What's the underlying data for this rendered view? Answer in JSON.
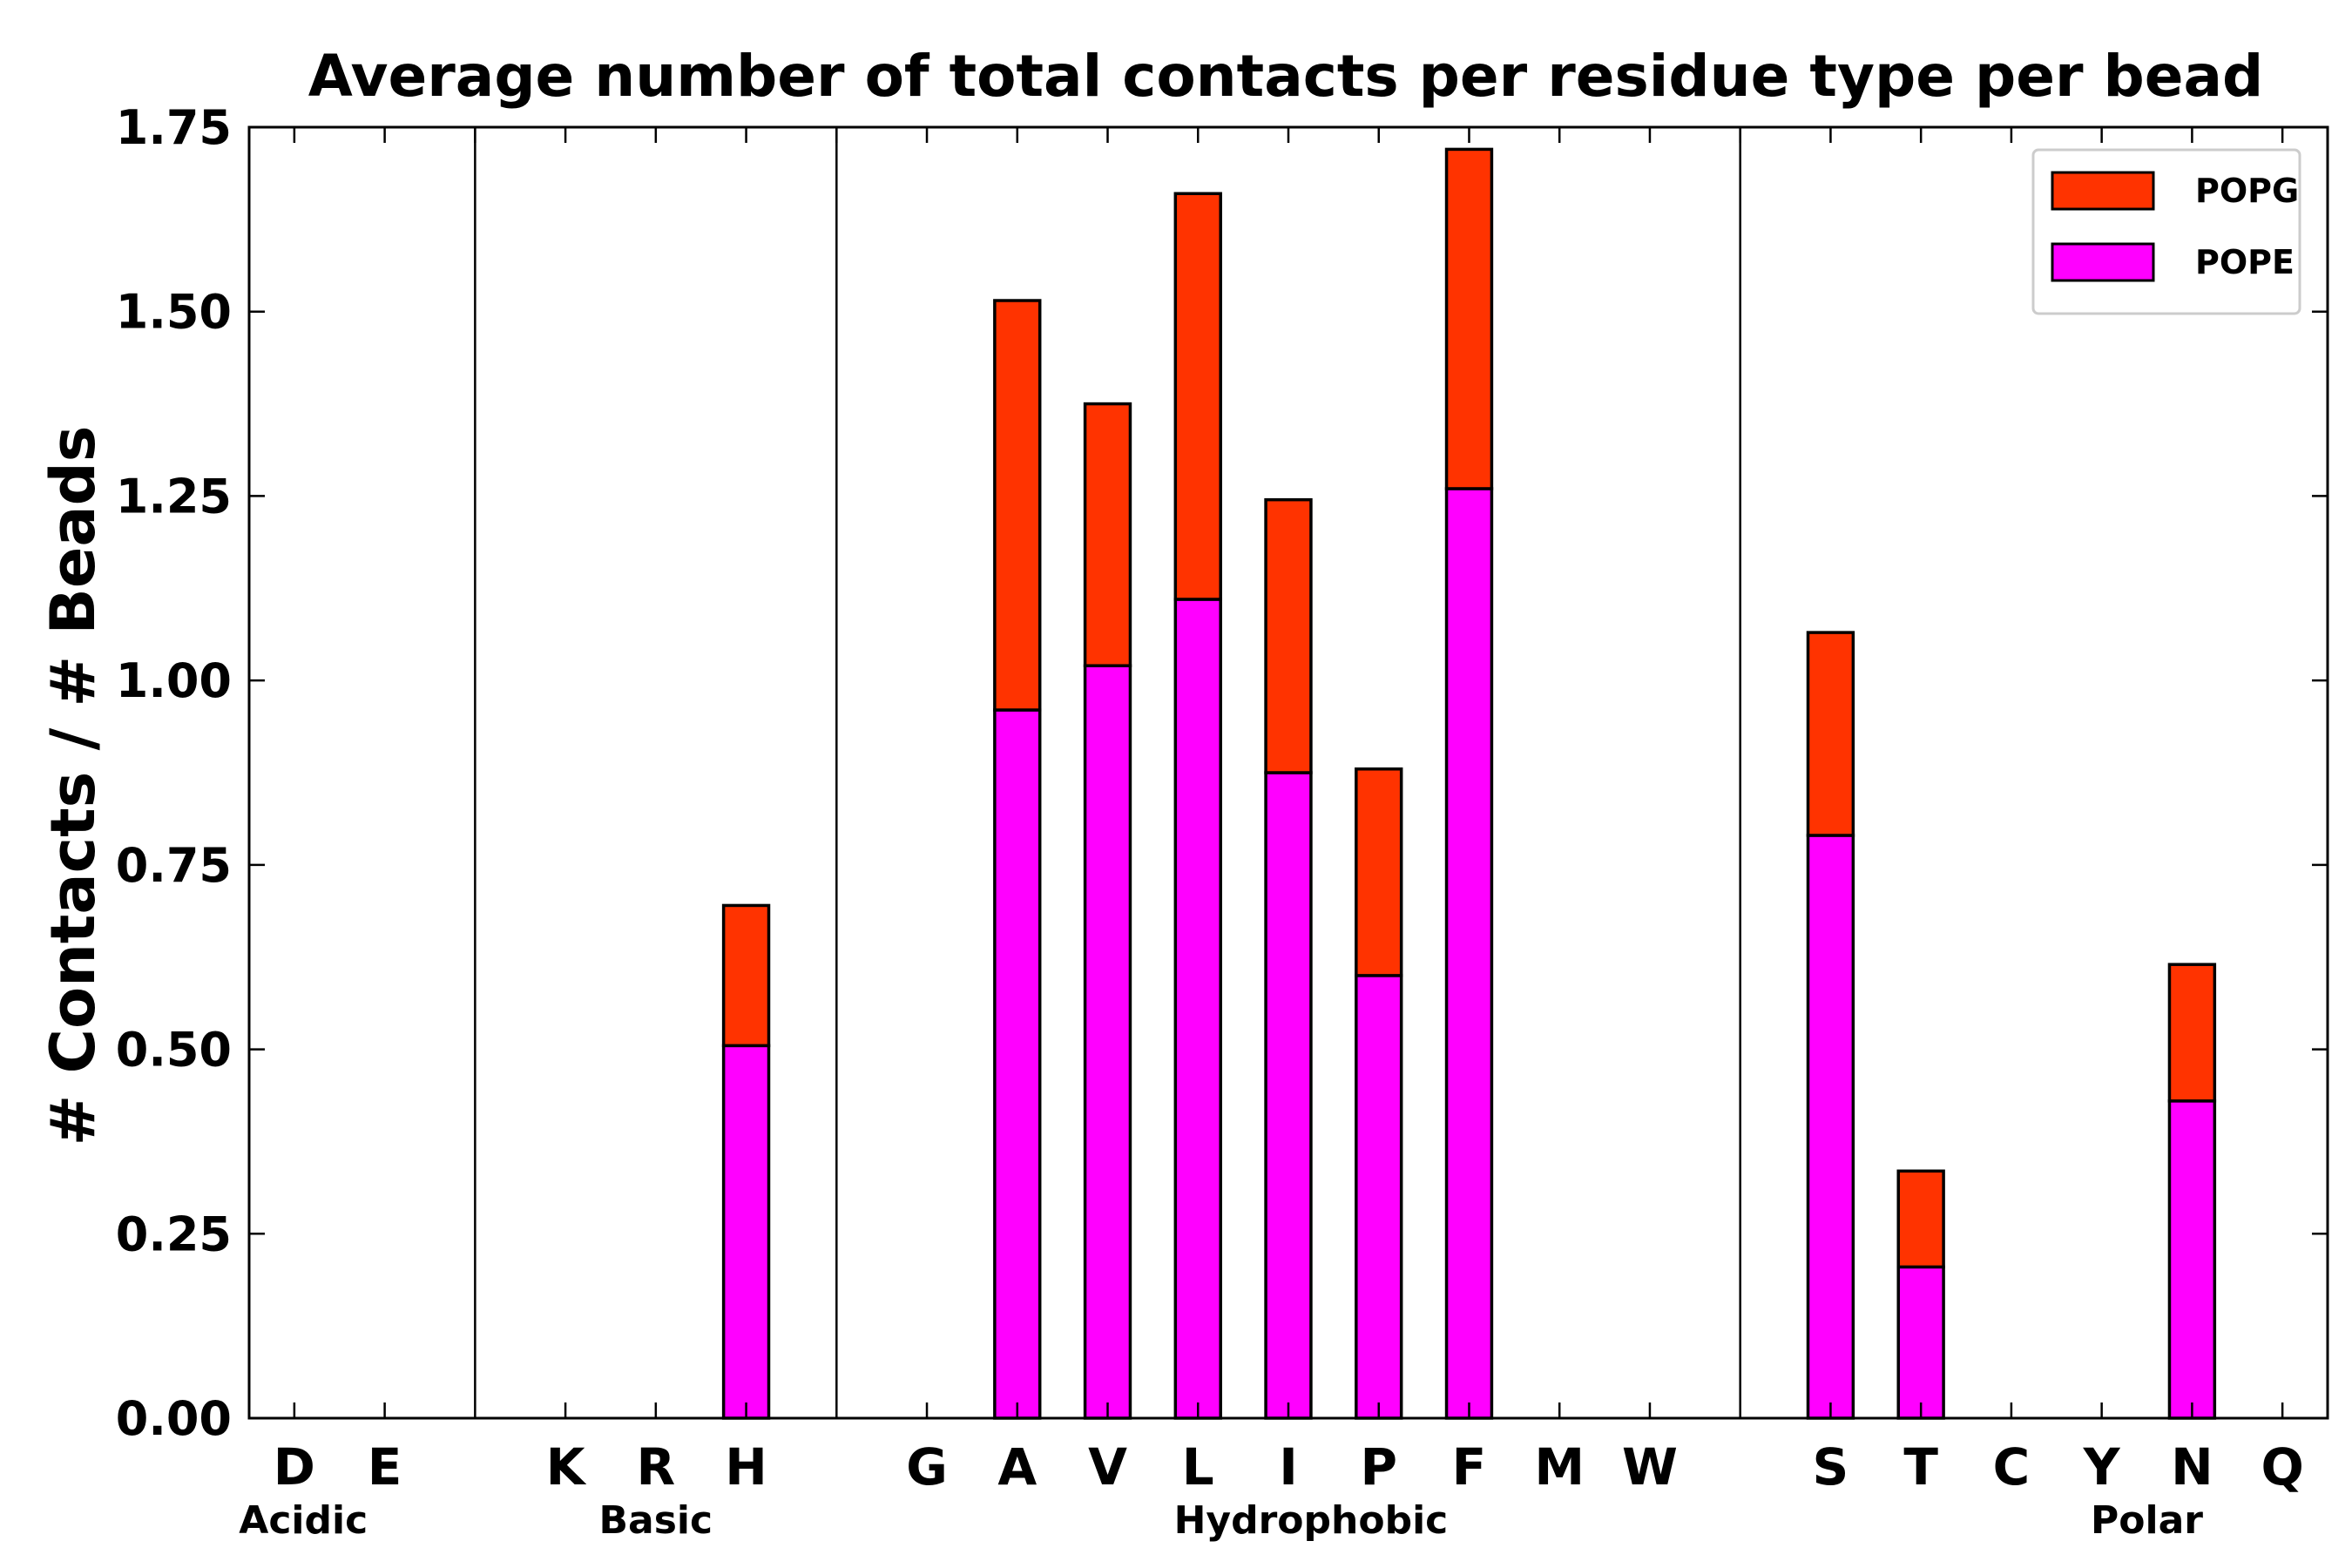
{
  "chart_data": {
    "type": "bar",
    "stacked": true,
    "title": "Average number of total contacts per residue type per bead",
    "xlabel": "",
    "ylabel": "# Contacts / # Beads",
    "ylim": [
      0,
      1.75
    ],
    "yticks": [
      "0.00",
      "0.25",
      "0.50",
      "0.75",
      "1.00",
      "1.25",
      "1.50",
      "1.75"
    ],
    "grid": false,
    "legend_position": "top-right",
    "categories": [
      "D",
      "E",
      "",
      "K",
      "R",
      "H",
      "",
      "G",
      "A",
      "V",
      "L",
      "I",
      "P",
      "F",
      "M",
      "W",
      "",
      "S",
      "T",
      "C",
      "Y",
      "N",
      "Q"
    ],
    "series": [
      {
        "name": "POPE",
        "color": "#ff00ff",
        "values": [
          0,
          0,
          0,
          0,
          0,
          0.505,
          0,
          0,
          0.96,
          1.02,
          1.11,
          0.875,
          0.6,
          1.26,
          0,
          0,
          0,
          0.79,
          0.205,
          0,
          0,
          0.43,
          0
        ]
      },
      {
        "name": "POPG",
        "color": "#ff3300",
        "values": [
          0,
          0,
          0,
          0,
          0,
          0.19,
          0,
          0,
          0.555,
          0.355,
          0.55,
          0.37,
          0.28,
          0.46,
          0,
          0,
          0,
          0.275,
          0.13,
          0,
          0,
          0.185,
          0
        ]
      }
    ],
    "groups": [
      {
        "label": "Acidic",
        "center_index": 0.1
      },
      {
        "label": "Basic",
        "center_index": 4.0
      },
      {
        "label": "Hydrophobic",
        "center_index": 11.25
      },
      {
        "label": "Polar",
        "center_index": 20.5
      }
    ],
    "separators_after_index": [
      2,
      6,
      16
    ],
    "legend_order": [
      "POPG",
      "POPE"
    ]
  }
}
